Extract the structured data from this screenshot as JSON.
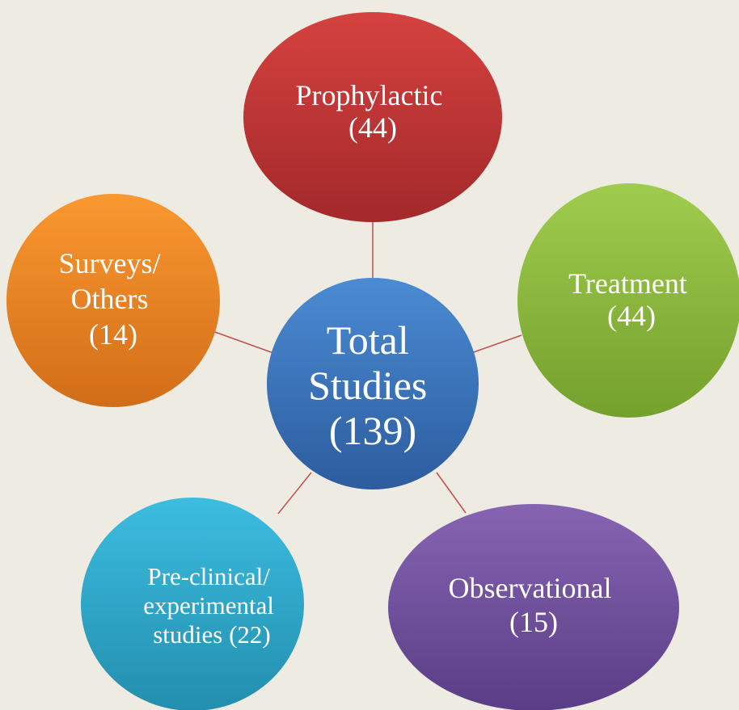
{
  "center": {
    "lines": [
      "Total",
      "Studies",
      "(139)"
    ]
  },
  "nodes": [
    {
      "lines": [
        "Prophylactic",
        "(44)"
      ]
    },
    {
      "lines": [
        "Treatment",
        "(44)"
      ]
    },
    {
      "lines": [
        "Observational",
        "(15)"
      ]
    },
    {
      "lines": [
        "Pre-clinical/",
        "experimental",
        "studies (22)"
      ]
    },
    {
      "lines": [
        "Surveys/",
        "Others",
        "(14)"
      ]
    }
  ]
}
